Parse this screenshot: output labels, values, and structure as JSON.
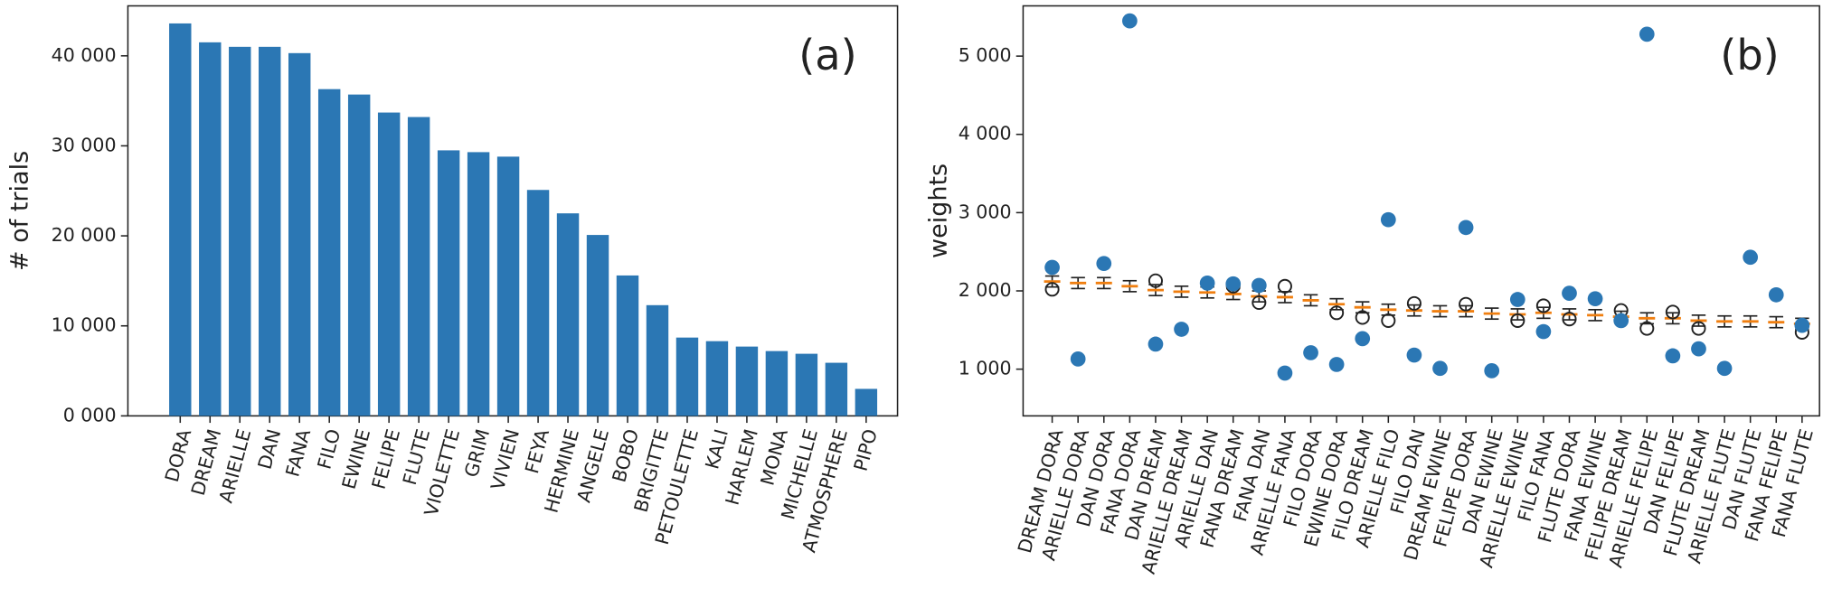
{
  "chart_data": [
    {
      "type": "bar",
      "annotation": "(a)",
      "ylabel": "# of trials",
      "color": "#2b77b4",
      "categories": [
        "DORA",
        "DREAM",
        "ARIELLE",
        "DAN",
        "FANA",
        "FILO",
        "EWINE",
        "FELIPE",
        "FLUTE",
        "VIOLETTE",
        "GRIM",
        "VIVIEN",
        "FEYA",
        "HERMINE",
        "ANGELE",
        "BOBO",
        "BRIGITTE",
        "PETOULETTE",
        "KALI",
        "HARLEM",
        "MONA",
        "MICHELLE",
        "ATMOSPHERE",
        "PIPO"
      ],
      "values": [
        43600,
        41500,
        41000,
        41000,
        40300,
        36300,
        35700,
        33700,
        33200,
        29500,
        29300,
        28800,
        25100,
        22500,
        20100,
        15600,
        12300,
        8700,
        8300,
        7700,
        7200,
        6900,
        5900,
        3000
      ],
      "ylim": [
        0,
        45550
      ],
      "yticks": [
        {
          "value": 0,
          "label": "0 000"
        },
        {
          "value": 10000,
          "label": "10 000"
        },
        {
          "value": 20000,
          "label": "20 000"
        },
        {
          "value": 30000,
          "label": "30 000"
        },
        {
          "value": 40000,
          "label": "40 000"
        }
      ]
    },
    {
      "type": "scatter",
      "annotation": "(b)",
      "ylabel": "weights",
      "color": "#2b77b4",
      "mean_color": "#f07f10",
      "categories": [
        "DREAM DORA",
        "ARIELLE DORA",
        "DAN DORA",
        "FANA DORA",
        "DAN DREAM",
        "ARIELLE DREAM",
        "ARIELLE DAN",
        "FANA DREAM",
        "FANA DAN",
        "ARIELLE FANA",
        "FILO DORA",
        "EWINE DORA",
        "FILO DREAM",
        "ARIELLE FILO",
        "FILO DAN",
        "DREAM EWINE",
        "FELIPE DORA",
        "DAN EWINE",
        "ARIELLE EWINE",
        "FILO FANA",
        "FLUTE DORA",
        "FANA EWINE",
        "FELIPE DREAM",
        "ARIELLE FELIPE",
        "DAN FELIPE",
        "FLUTE DREAM",
        "ARIELLE FLUTE",
        "DAN FLUTE",
        "FANA FELIPE",
        "FANA FLUTE"
      ],
      "values": [
        2300,
        1130,
        2350,
        5450,
        1320,
        1510,
        2100,
        2090,
        2070,
        950,
        1210,
        1060,
        1390,
        2910,
        1180,
        1010,
        2810,
        980,
        1890,
        1480,
        1970,
        1900,
        1620,
        5280,
        1170,
        1260,
        1010,
        2430,
        1950,
        1560
      ],
      "circles": [
        2020,
        null,
        null,
        null,
        2130,
        null,
        null,
        2060,
        1850,
        2060,
        null,
        1720,
        1660,
        1620,
        1840,
        null,
        1830,
        null,
        1620,
        1810,
        1640,
        null,
        1750,
        1520,
        1730,
        1520,
        null,
        null,
        null,
        1470
      ],
      "means": [
        2120,
        2100,
        2100,
        2060,
        2010,
        1990,
        1980,
        1960,
        1930,
        1920,
        1880,
        1830,
        1790,
        1760,
        1750,
        1740,
        1740,
        1710,
        1700,
        1720,
        1700,
        1690,
        1670,
        1650,
        1650,
        1620,
        1610,
        1610,
        1600,
        1580
      ],
      "errors": [
        70,
        70,
        70,
        70,
        70,
        70,
        70,
        70,
        70,
        70,
        70,
        70,
        70,
        70,
        70,
        70,
        70,
        70,
        70,
        70,
        70,
        70,
        70,
        70,
        70,
        70,
        70,
        70,
        70,
        70
      ],
      "ylim": [
        403,
        5642
      ],
      "yticks": [
        {
          "value": 1000,
          "label": "1 000"
        },
        {
          "value": 2000,
          "label": "2 000"
        },
        {
          "value": 3000,
          "label": "3 000"
        },
        {
          "value": 4000,
          "label": "4 000"
        },
        {
          "value": 5000,
          "label": "5 000"
        }
      ]
    }
  ]
}
